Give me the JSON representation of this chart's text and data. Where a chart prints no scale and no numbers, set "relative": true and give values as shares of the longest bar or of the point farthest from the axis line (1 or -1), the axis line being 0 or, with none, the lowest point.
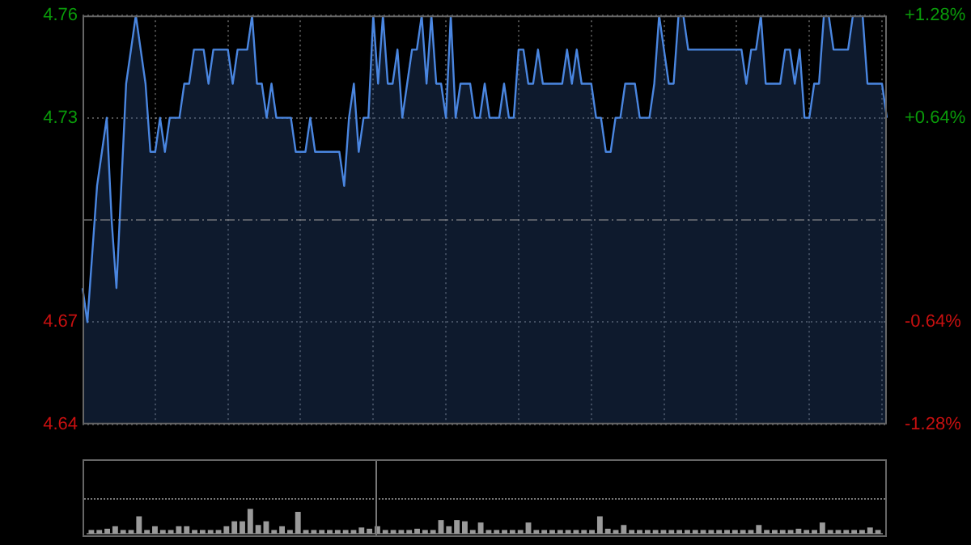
{
  "chart_data": [
    {
      "type": "area",
      "categories": [
        null,
        null,
        null,
        null,
        null,
        null,
        null,
        null,
        null,
        null,
        null,
        null,
        null,
        null,
        null,
        null,
        null,
        null,
        null,
        null,
        null,
        null,
        null,
        null,
        null,
        null,
        null,
        null,
        null,
        null,
        null,
        null,
        null,
        null,
        null,
        null,
        null,
        null,
        null,
        null,
        null,
        null,
        null,
        null,
        null,
        null,
        null,
        null,
        null,
        null,
        null,
        null,
        null,
        null,
        null,
        null,
        null,
        null,
        null,
        null,
        null,
        null,
        null,
        null,
        null,
        null,
        null,
        null,
        null,
        null,
        null,
        null,
        null,
        null,
        null,
        null,
        null,
        null,
        null,
        null,
        null,
        null,
        null,
        null,
        null,
        null,
        null,
        null,
        null,
        null,
        null,
        null,
        null,
        null,
        null,
        null,
        null,
        null,
        null,
        null,
        null,
        null,
        null,
        null,
        null,
        null,
        null,
        null,
        null,
        null,
        null,
        null,
        null,
        null,
        null,
        null,
        null,
        null,
        null,
        null,
        null,
        null,
        null,
        null,
        null,
        null,
        null,
        null,
        null,
        null,
        null,
        null,
        null,
        null,
        null,
        null,
        null,
        null,
        null,
        null,
        null,
        null,
        null,
        null,
        null,
        null,
        null,
        null,
        null,
        null,
        null,
        null,
        null,
        null,
        null,
        null,
        null,
        null,
        null,
        null,
        null,
        null,
        null,
        null,
        null,
        null,
        null
      ],
      "values": [
        4.68,
        4.67,
        4.69,
        4.71,
        4.72,
        4.73,
        4.7,
        4.68,
        4.71,
        4.74,
        4.75,
        4.76,
        4.75,
        4.74,
        4.72,
        4.72,
        4.73,
        4.72,
        4.73,
        4.73,
        4.73,
        4.74,
        4.74,
        4.75,
        4.75,
        4.75,
        4.74,
        4.75,
        4.75,
        4.75,
        4.75,
        4.74,
        4.75,
        4.75,
        4.75,
        4.76,
        4.74,
        4.74,
        4.73,
        4.74,
        4.73,
        4.73,
        4.73,
        4.73,
        4.72,
        4.72,
        4.72,
        4.73,
        4.72,
        4.72,
        4.72,
        4.72,
        4.72,
        4.72,
        4.71,
        4.73,
        4.74,
        4.72,
        4.73,
        4.73,
        4.76,
        4.74,
        4.76,
        4.74,
        4.74,
        4.75,
        4.73,
        4.74,
        4.75,
        4.75,
        4.76,
        4.74,
        4.76,
        4.74,
        4.74,
        4.73,
        4.76,
        4.73,
        4.74,
        4.74,
        4.74,
        4.73,
        4.73,
        4.74,
        4.73,
        4.73,
        4.73,
        4.74,
        4.73,
        4.73,
        4.75,
        4.75,
        4.74,
        4.74,
        4.75,
        4.74,
        4.74,
        4.74,
        4.74,
        4.74,
        4.75,
        4.74,
        4.75,
        4.74,
        4.74,
        4.74,
        4.73,
        4.73,
        4.72,
        4.72,
        4.73,
        4.73,
        4.74,
        4.74,
        4.74,
        4.73,
        4.73,
        4.73,
        4.74,
        4.76,
        4.75,
        4.74,
        4.74,
        4.76,
        4.76,
        4.75,
        4.75,
        4.75,
        4.75,
        4.75,
        4.75,
        4.75,
        4.75,
        4.75,
        4.75,
        4.75,
        4.75,
        4.74,
        4.75,
        4.75,
        4.76,
        4.74,
        4.74,
        4.74,
        4.74,
        4.75,
        4.75,
        4.74,
        4.75,
        4.73,
        4.73,
        4.74,
        4.74,
        4.76,
        4.76,
        4.75,
        4.75,
        4.75,
        4.75,
        4.76,
        4.76,
        4.76,
        4.74,
        4.74,
        4.74,
        4.74,
        4.73
      ],
      "color": "#4a86e0",
      "ylim": [
        4.64,
        4.76
      ],
      "yticks": [
        4.64,
        4.67,
        4.73,
        4.76
      ],
      "y2lim": [
        -1.28,
        1.28
      ],
      "y2ticks": [
        {
          "value": -1.28,
          "label": "-1.28%"
        },
        {
          "value": -0.64,
          "label": "-0.64%"
        },
        {
          "value": 0.64,
          "label": "+0.64%"
        },
        {
          "value": 1.28,
          "label": "+1.28%"
        }
      ],
      "ref_lines": [
        {
          "axis": "y",
          "value": 4.7,
          "line_style": "dashed"
        }
      ],
      "grid": true,
      "tick_labels": "y"
    },
    {
      "type": "bar",
      "relative": true,
      "categories": [
        null,
        null,
        null,
        null,
        null,
        null,
        null,
        null,
        null,
        null,
        null,
        null,
        null,
        null,
        null,
        null,
        null,
        null,
        null,
        null,
        null,
        null,
        null,
        null,
        null,
        null,
        null,
        null,
        null,
        null,
        null,
        null,
        null,
        null,
        null,
        null,
        null,
        null,
        null,
        null,
        null,
        null,
        null,
        null,
        null,
        null,
        null,
        null,
        null,
        null,
        null,
        null,
        null,
        null,
        null,
        null,
        null,
        null,
        null,
        null,
        null,
        null,
        null,
        null,
        null,
        null,
        null,
        null,
        null,
        null,
        null,
        null,
        null,
        null,
        null,
        null,
        null,
        null,
        null,
        null,
        null,
        null,
        null,
        null,
        null,
        null,
        null,
        null,
        null,
        null,
        null,
        null,
        null,
        null,
        null,
        null,
        null,
        null,
        null,
        null
      ],
      "values": [
        0.15,
        0.15,
        0.2,
        0.3,
        0.15,
        0.15,
        0.7,
        0.15,
        0.3,
        0.15,
        0.15,
        0.3,
        0.3,
        0.15,
        0.15,
        0.15,
        0.15,
        0.3,
        0.5,
        0.5,
        1,
        0.35,
        0.5,
        0.15,
        0.3,
        0.15,
        0.88,
        0.15,
        0.15,
        0.15,
        0.15,
        0.15,
        0.15,
        0.15,
        0.25,
        0.2,
        0.3,
        0.15,
        0.15,
        0.15,
        0.15,
        0.2,
        0.15,
        0.15,
        0.55,
        0.3,
        0.55,
        0.5,
        0.15,
        0.45,
        0.15,
        0.15,
        0.15,
        0.15,
        0.15,
        0.45,
        0.15,
        0.15,
        0.15,
        0.15,
        0.15,
        0.15,
        0.15,
        0.15,
        0.7,
        0.2,
        0.15,
        0.35,
        0.15,
        0.15,
        0.15,
        0.15,
        0.15,
        0.15,
        0.15,
        0.15,
        0.15,
        0.15,
        0.15,
        0.15,
        0.15,
        0.15,
        0.15,
        0.15,
        0.35,
        0.15,
        0.15,
        0.15,
        0.15,
        0.2,
        0.15,
        0.15,
        0.45,
        0.15,
        0.15,
        0.15,
        0.15,
        0.15,
        0.25,
        0.15
      ],
      "color": "#9a9a9a",
      "grid": true
    }
  ]
}
